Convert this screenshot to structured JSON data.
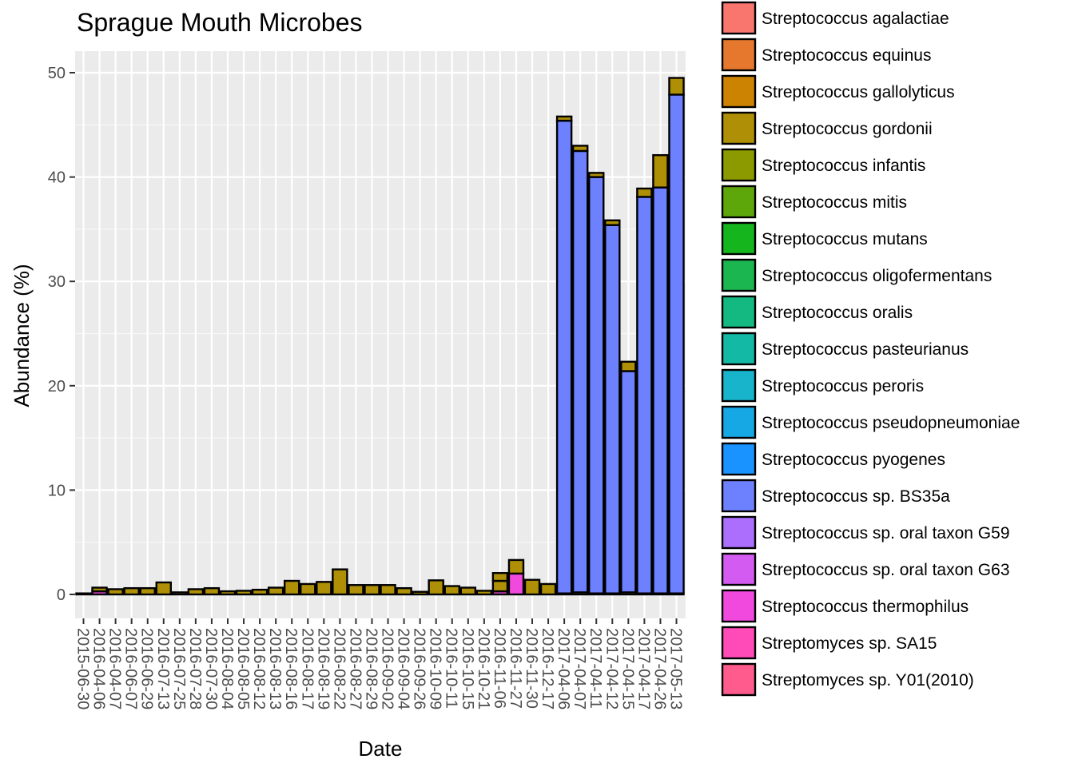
{
  "chart_data": {
    "type": "bar",
    "stacked": true,
    "title": "Sprague Mouth Microbes",
    "xlabel": "Date",
    "ylabel": "Abundance (%)",
    "ylim": [
      0,
      52
    ],
    "yticks": [
      0,
      10,
      20,
      30,
      40,
      50
    ],
    "grid": true,
    "legend_position": "right",
    "legend": [
      {
        "name": "Streptococcus agalactiae",
        "color": "#F8766D"
      },
      {
        "name": "Streptococcus equinus",
        "color": "#E6782E"
      },
      {
        "name": "Streptococcus gallolyticus",
        "color": "#CD8302"
      },
      {
        "name": "Streptococcus gordonii",
        "color": "#AE8F05"
      },
      {
        "name": "Streptococcus infantis",
        "color": "#8C9A00"
      },
      {
        "name": "Streptococcus mitis",
        "color": "#5EA70A"
      },
      {
        "name": "Streptococcus mutans",
        "color": "#15B51E"
      },
      {
        "name": "Streptococcus oligofermentans",
        "color": "#1BB64F"
      },
      {
        "name": "Streptococcus oralis",
        "color": "#14B981"
      },
      {
        "name": "Streptococcus pasteurianus",
        "color": "#14B9A6"
      },
      {
        "name": "Streptococcus peroris",
        "color": "#17B4CC"
      },
      {
        "name": "Streptococcus pseudopneumoniae",
        "color": "#16A7E5"
      },
      {
        "name": "Streptococcus pyogenes",
        "color": "#1893FF"
      },
      {
        "name": "Streptococcus sp. BS35a",
        "color": "#6D81FF"
      },
      {
        "name": "Streptococcus sp. oral taxon G59",
        "color": "#AB6EFD"
      },
      {
        "name": "Streptococcus sp. oral taxon G63",
        "color": "#D45BF2"
      },
      {
        "name": "Streptococcus thermophilus",
        "color": "#F149DE"
      },
      {
        "name": "Streptomyces sp. SA15",
        "color": "#FF4BB8"
      },
      {
        "name": "Streptomyces sp. Y01(2010)",
        "color": "#FF5B8D"
      }
    ],
    "categories": [
      "2015-06-30",
      "2016-04-06",
      "2016-04-07",
      "2016-06-07",
      "2016-06-29",
      "2016-07-13",
      "2016-07-25",
      "2016-07-28",
      "2016-07-30",
      "2016-08-04",
      "2016-08-05",
      "2016-08-12",
      "2016-08-13",
      "2016-08-16",
      "2016-08-17",
      "2016-08-19",
      "2016-08-22",
      "2016-08-27",
      "2016-08-29",
      "2016-09-02",
      "2016-09-04",
      "2016-09-26",
      "2016-10-09",
      "2016-10-11",
      "2016-10-15",
      "2016-10-21",
      "2016-11-06",
      "2016-11-27",
      "2016-11-30",
      "2016-12-17",
      "2017-04-06",
      "2017-04-07",
      "2017-04-11",
      "2017-04-12",
      "2017-04-15",
      "2017-04-17",
      "2017-04-26",
      "2017-05-13"
    ],
    "segments": [
      [
        {
          "s": "Streptococcus gordonii",
          "v": 0.1
        }
      ],
      [
        {
          "s": "Streptococcus thermophilus",
          "v": 0.3
        },
        {
          "s": "Streptococcus gordonii",
          "v": 0.35
        }
      ],
      [
        {
          "s": "Streptococcus gordonii",
          "v": 0.5
        }
      ],
      [
        {
          "s": "Streptococcus gordonii",
          "v": 0.6
        }
      ],
      [
        {
          "s": "Streptococcus gordonii",
          "v": 0.6
        }
      ],
      [
        {
          "s": "Streptococcus gordonii",
          "v": 1.15
        }
      ],
      [
        {
          "s": "Streptococcus gordonii",
          "v": 0.2
        }
      ],
      [
        {
          "s": "Streptococcus gordonii",
          "v": 0.5
        }
      ],
      [
        {
          "s": "Streptococcus gordonii",
          "v": 0.6
        }
      ],
      [
        {
          "s": "Streptococcus gordonii",
          "v": 0.3
        }
      ],
      [
        {
          "s": "Streptococcus gordonii",
          "v": 0.35
        }
      ],
      [
        {
          "s": "Streptococcus gordonii",
          "v": 0.45
        }
      ],
      [
        {
          "s": "Streptococcus gordonii",
          "v": 0.65
        }
      ],
      [
        {
          "s": "Streptococcus gordonii",
          "v": 1.3
        }
      ],
      [
        {
          "s": "Streptococcus gordonii",
          "v": 1.0
        }
      ],
      [
        {
          "s": "Streptococcus gordonii",
          "v": 1.2
        }
      ],
      [
        {
          "s": "Streptococcus gordonii",
          "v": 2.4
        }
      ],
      [
        {
          "s": "Streptococcus gordonii",
          "v": 0.9
        }
      ],
      [
        {
          "s": "Streptococcus gordonii",
          "v": 0.9
        }
      ],
      [
        {
          "s": "Streptococcus gordonii",
          "v": 0.9
        }
      ],
      [
        {
          "s": "Streptococcus gordonii",
          "v": 0.6
        }
      ],
      [
        {
          "s": "Streptococcus gordonii",
          "v": 0.25
        }
      ],
      [
        {
          "s": "Streptococcus gordonii",
          "v": 1.35
        }
      ],
      [
        {
          "s": "Streptococcus gordonii",
          "v": 0.8
        }
      ],
      [
        {
          "s": "Streptococcus gordonii",
          "v": 0.65
        }
      ],
      [
        {
          "s": "Streptococcus gordonii",
          "v": 0.35
        }
      ],
      [
        {
          "s": "Streptococcus thermophilus",
          "v": 0.3
        },
        {
          "s": "Streptococcus gordonii",
          "v": 1.0
        },
        {
          "s": "Streptococcus gordonii",
          "v": 0.75
        }
      ],
      [
        {
          "s": "Streptococcus thermophilus",
          "v": 2.0
        },
        {
          "s": "Streptococcus gordonii",
          "v": 1.3
        }
      ],
      [
        {
          "s": "Streptococcus gordonii",
          "v": 1.4
        }
      ],
      [
        {
          "s": "Streptococcus gordonii",
          "v": 1.0
        }
      ],
      [
        {
          "s": "Streptococcus gordonii",
          "v": 0.1
        },
        {
          "s": "Streptococcus sp. BS35a",
          "v": 45.3
        },
        {
          "s": "Streptococcus gordonii",
          "v": 0.4
        }
      ],
      [
        {
          "s": "Streptococcus gordonii",
          "v": 0.2
        },
        {
          "s": "Streptococcus sp. BS35a",
          "v": 42.3
        },
        {
          "s": "Streptococcus gordonii",
          "v": 0.5
        }
      ],
      [
        {
          "s": "Streptococcus gordonii",
          "v": 0.1
        },
        {
          "s": "Streptococcus sp. BS35a",
          "v": 39.9
        },
        {
          "s": "Streptococcus gordonii",
          "v": 0.4
        }
      ],
      [
        {
          "s": "Streptococcus gordonii",
          "v": 0.1
        },
        {
          "s": "Streptococcus sp. BS35a",
          "v": 35.3
        },
        {
          "s": "Streptococcus gordonii",
          "v": 0.45
        }
      ],
      [
        {
          "s": "Streptococcus gordonii",
          "v": 0.2
        },
        {
          "s": "Streptococcus sp. BS35a",
          "v": 21.2
        },
        {
          "s": "Streptococcus gordonii",
          "v": 0.9
        }
      ],
      [
        {
          "s": "Streptococcus gordonii",
          "v": 0.1
        },
        {
          "s": "Streptococcus sp. BS35a",
          "v": 38.0
        },
        {
          "s": "Streptococcus gordonii",
          "v": 0.8
        }
      ],
      [
        {
          "s": "Streptococcus gordonii",
          "v": 0.1
        },
        {
          "s": "Streptococcus sp. BS35a",
          "v": 38.9
        },
        {
          "s": "Streptococcus gordonii",
          "v": 3.1
        }
      ],
      [
        {
          "s": "Streptococcus gordonii",
          "v": 0.1
        },
        {
          "s": "Streptococcus sp. BS35a",
          "v": 47.8
        },
        {
          "s": "Streptococcus gordonii",
          "v": 1.6
        }
      ]
    ]
  }
}
